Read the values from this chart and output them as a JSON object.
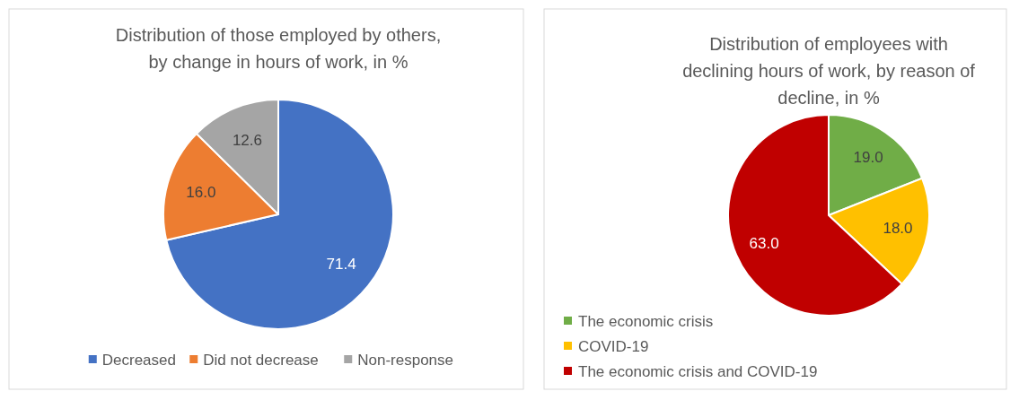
{
  "chart_data": [
    {
      "type": "pie",
      "title": "Distribution of those employed by others, by change in hours of work, in %",
      "categories": [
        "Decreased",
        "Did not decrease",
        "Non-response"
      ],
      "values": [
        71.4,
        16.0,
        12.6
      ],
      "colors": [
        "#4472c4",
        "#ed7d31",
        "#a5a5a5"
      ],
      "value_labels": [
        "71.4",
        "16.0",
        "12.6"
      ],
      "legend": "bottom"
    },
    {
      "type": "pie",
      "title": "Distribution of employees with declining hours of work, by reason of decline, in %",
      "categories": [
        "The economic crisis",
        "COVID-19",
        "The economic crisis and COVID-19"
      ],
      "values": [
        19.0,
        18.0,
        63.0
      ],
      "colors": [
        "#70ad47",
        "#ffc000",
        "#c00000"
      ],
      "value_labels": [
        "19.0",
        "18.0",
        "63.0"
      ],
      "legend": "bottom left"
    }
  ]
}
